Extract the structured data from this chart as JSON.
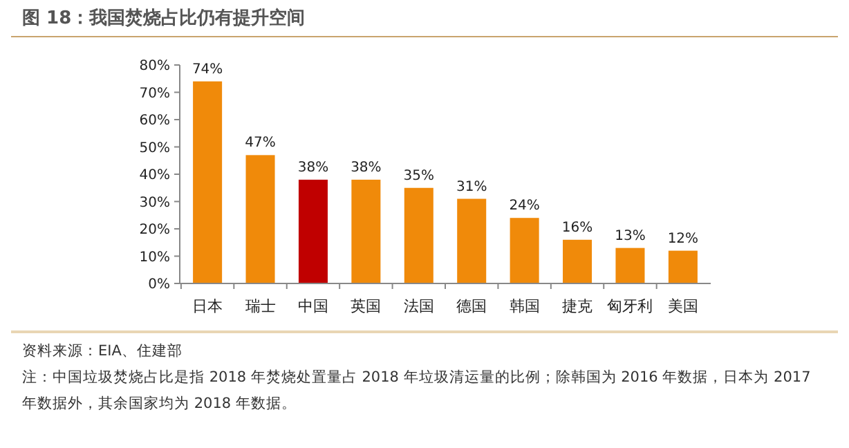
{
  "chart_data": {
    "type": "bar",
    "title": "图 18：我国焚烧占比仍有提升空间",
    "categories": [
      "日本",
      "瑞士",
      "中国",
      "英国",
      "法国",
      "德国",
      "韩国",
      "捷克",
      "匈牙利",
      "美国"
    ],
    "values": [
      74,
      47,
      38,
      38,
      35,
      31,
      24,
      16,
      13,
      12
    ],
    "value_labels": [
      "74%",
      "47%",
      "38%",
      "38%",
      "35%",
      "31%",
      "24%",
      "16%",
      "13%",
      "12%"
    ],
    "colors": [
      "#f08a0a",
      "#f08a0a",
      "#c00000",
      "#f08a0a",
      "#f08a0a",
      "#f08a0a",
      "#f08a0a",
      "#f08a0a",
      "#f08a0a",
      "#f08a0a"
    ],
    "ylim": [
      0,
      80
    ],
    "yticks": [
      {
        "value": 0,
        "label": "0%"
      },
      {
        "value": 10,
        "label": "10%"
      },
      {
        "value": 20,
        "label": "20%"
      },
      {
        "value": 30,
        "label": "30%"
      },
      {
        "value": 40,
        "label": "40%"
      },
      {
        "value": 50,
        "label": "50%"
      },
      {
        "value": 60,
        "label": "60%"
      },
      {
        "value": 70,
        "label": "70%"
      },
      {
        "value": 80,
        "label": "80%"
      }
    ],
    "grid": false,
    "annotations": [
      "资料来源：EIA、住建部",
      "注：中国垃圾焚烧占比是指 2018 年焚烧处置量占 2018 年垃圾清运量的比例；除韩国为 2016 年数据，日本为 2017 年数据外，其余国家均为 2018 年数据。"
    ]
  }
}
